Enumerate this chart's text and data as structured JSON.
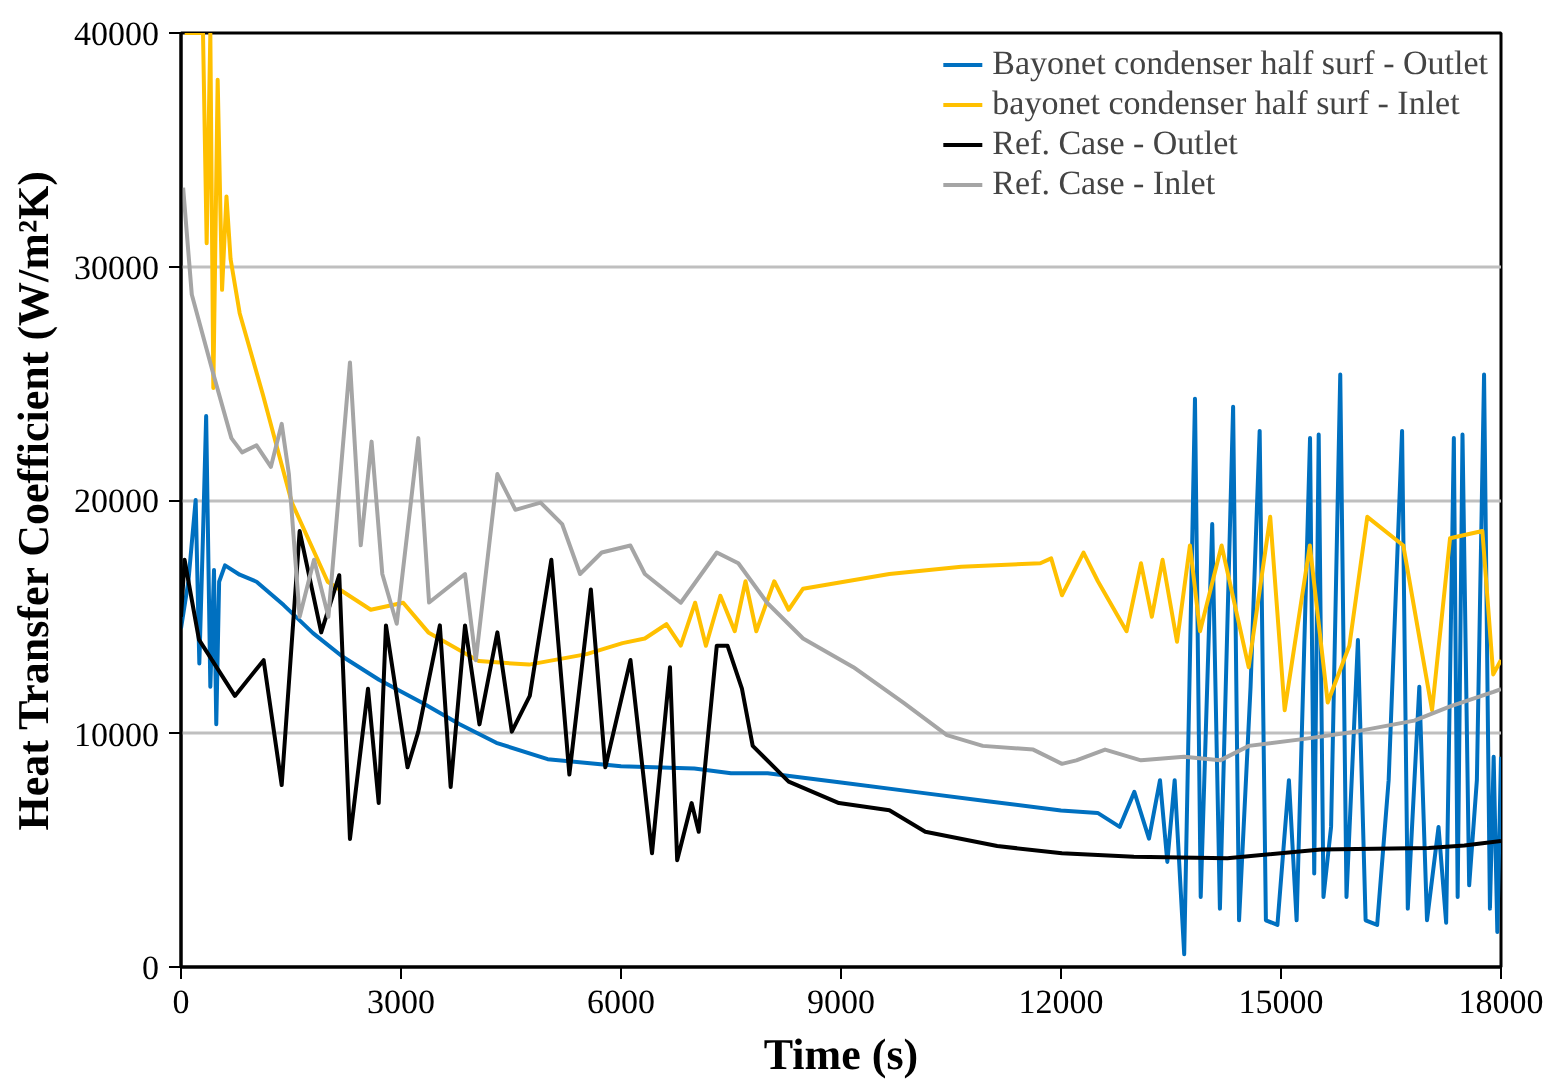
{
  "chart_data": {
    "type": "line",
    "xlabel": "Time (s)",
    "ylabel": "Heat Transfer Coefficient (W/m²K)",
    "xlim": [
      0,
      18000
    ],
    "ylim": [
      0,
      40000
    ],
    "xticks": [
      0,
      3000,
      6000,
      9000,
      12000,
      15000,
      18000
    ],
    "yticks": [
      0,
      10000,
      20000,
      30000,
      40000
    ],
    "grid": "y",
    "legend": "top right",
    "line_style": "solid",
    "marker": "none",
    "series": [
      {
        "name": "Bayonet condenser half surf - Outlet",
        "color": "#0070c0",
        "x": [
          0,
          100,
          200,
          250,
          300,
          343,
          400,
          450,
          481,
          520,
          600,
          800,
          1030,
          1400,
          1800,
          2200,
          2700,
          3300,
          3800,
          4300,
          5000,
          6000,
          7000,
          7500,
          8000,
          9000,
          10000,
          11000,
          12000,
          12500,
          12800,
          13000,
          13200,
          13350,
          13450,
          13550,
          13680,
          13827,
          13905,
          14062,
          14167,
          14347,
          14428,
          14585,
          14709,
          14794,
          14951,
          15108,
          15213,
          15396,
          15453,
          15514,
          15579,
          15683,
          15808,
          15893,
          16049,
          16154,
          16311,
          16468,
          16651,
          16729,
          16886,
          16991,
          17148,
          17252,
          17357,
          17409,
          17475,
          17566,
          17671,
          17769,
          17849,
          17900,
          17950,
          18000
        ],
        "values": [
          14500,
          16500,
          20000,
          13000,
          18500,
          23600,
          12000,
          17000,
          10400,
          16500,
          17200,
          16800,
          16500,
          15500,
          14300,
          13300,
          12300,
          11300,
          10400,
          9600,
          8900,
          8600,
          8500,
          8300,
          8300,
          7900,
          7500,
          7100,
          6700,
          6600,
          6000,
          7500,
          5500,
          8000,
          4500,
          8000,
          550,
          24340,
          3000,
          18970,
          2500,
          23990,
          2000,
          12000,
          22960,
          2000,
          1800,
          8000,
          2000,
          22650,
          4000,
          22800,
          3000,
          6000,
          25370,
          3000,
          14000,
          2000,
          1800,
          8000,
          22960,
          2500,
          12000,
          2000,
          6000,
          1900,
          22650,
          3000,
          22800,
          3500,
          8000,
          25370,
          2500,
          9000,
          1500,
          9000
        ]
      },
      {
        "name": "bayonet condenser half surf - Inlet",
        "color": "#ffc000",
        "x": [
          50,
          300,
          350,
          400,
          441,
          500,
          560,
          620,
          676,
          800,
          1118,
          1510,
          2000,
          2588,
          3030,
          3373,
          4060,
          4746,
          5531,
          6021,
          6325,
          6619,
          6815,
          7011,
          7158,
          7355,
          7551,
          7698,
          7845,
          8090,
          8286,
          8483,
          9660,
          10640,
          11718,
          11866,
          12013,
          12307,
          12503,
          12894,
          13091,
          13239,
          13385,
          13582,
          13758,
          13896,
          14190,
          14559,
          14853,
          15050,
          15393,
          15637,
          15932,
          16177,
          16668,
          17060,
          17305,
          17746,
          17894,
          18000
        ],
        "values": [
          40000,
          40000,
          31000,
          40000,
          24800,
          38000,
          29000,
          33000,
          30320,
          28000,
          24500,
          19900,
          16500,
          15300,
          15600,
          14330,
          13100,
          12950,
          13400,
          13870,
          14070,
          14680,
          13760,
          15600,
          13760,
          15900,
          14380,
          16520,
          14380,
          16520,
          15300,
          16200,
          16830,
          17140,
          17290,
          17500,
          15920,
          17750,
          16520,
          14380,
          17290,
          15000,
          17440,
          13930,
          18050,
          14380,
          18050,
          12840,
          19280,
          11000,
          18050,
          11330,
          13760,
          19280,
          18050,
          11000,
          18360,
          18670,
          12530,
          13150
        ]
      },
      {
        "name": "Ref. Case - Outlet",
        "color": "#000000",
        "x": [
          0,
          49,
          245,
          735,
          1127,
          1373,
          1618,
          1912,
          2158,
          2304,
          2550,
          2696,
          2795,
          3089,
          3236,
          3530,
          3677,
          3873,
          4070,
          4314,
          4511,
          4756,
          5050,
          5296,
          5589,
          5786,
          6129,
          6423,
          6668,
          6766,
          6963,
          7060,
          7306,
          7452,
          7649,
          7796,
          8286,
          8972,
          9660,
          10149,
          11130,
          12013,
          12993,
          14268,
          15543,
          17014,
          17500,
          18000
        ],
        "values": [
          15000,
          17440,
          14020,
          11610,
          13140,
          7790,
          18670,
          14330,
          16780,
          5480,
          11920,
          7020,
          14630,
          8550,
          10080,
          14630,
          7710,
          14630,
          10390,
          14330,
          10080,
          11610,
          17440,
          8240,
          16170,
          8550,
          13150,
          4870,
          12840,
          4570,
          7020,
          5790,
          13760,
          13760,
          11920,
          9470,
          7940,
          7020,
          6710,
          5790,
          5180,
          4870,
          4720,
          4660,
          5030,
          5100,
          5200,
          5400
        ]
      },
      {
        "name": "Ref. Case - Inlet",
        "color": "#a5a5a5",
        "x": [
          29,
          147,
          441,
          687,
          833,
          1030,
          1226,
          1373,
          1471,
          1618,
          1814,
          2010,
          2304,
          2451,
          2599,
          2745,
          2942,
          3236,
          3383,
          3873,
          4020,
          4314,
          4560,
          4903,
          5197,
          5442,
          5737,
          6129,
          6325,
          6815,
          7306,
          7600,
          7992,
          8483,
          9169,
          9855,
          10444,
          10933,
          11621,
          12013,
          12209,
          12601,
          13091,
          13679,
          14170,
          14562,
          15347,
          16033,
          16817,
          17308,
          17897,
          18000
        ],
        "values": [
          33380,
          28800,
          25400,
          22650,
          22040,
          22340,
          21420,
          23260,
          21110,
          15000,
          17440,
          15000,
          25890,
          18060,
          22500,
          16830,
          14700,
          22650,
          15610,
          16830,
          13140,
          21110,
          19580,
          19890,
          18970,
          16830,
          17750,
          18050,
          16830,
          15600,
          17750,
          17290,
          15600,
          14070,
          12840,
          11310,
          9930,
          9470,
          9310,
          8700,
          8850,
          9310,
          8850,
          9000,
          8850,
          9470,
          9780,
          10090,
          10550,
          11160,
          11780,
          11900
        ]
      }
    ]
  }
}
